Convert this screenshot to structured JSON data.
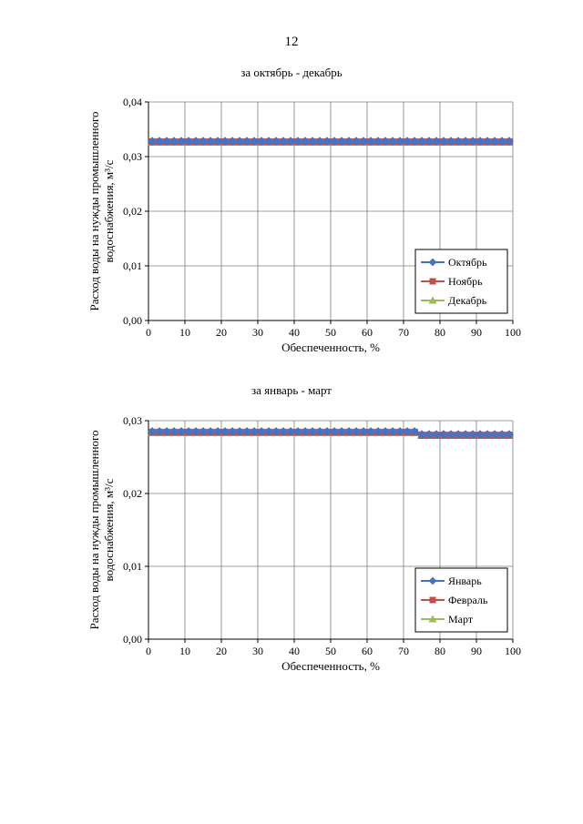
{
  "page_number": "12",
  "chart_data": [
    {
      "type": "line",
      "title": "за октябрь - декабрь",
      "xlabel": "Обеспеченность, %",
      "ylabel_lines": [
        "Расход воды на нужды промышленного",
        "водоснабжения, м³/с"
      ],
      "xlim": [
        0,
        100
      ],
      "ylim": [
        0,
        0.04
      ],
      "x_ticks": [
        0,
        10,
        20,
        30,
        40,
        50,
        60,
        70,
        80,
        90,
        100
      ],
      "y_ticks": [
        0,
        0.01,
        0.02,
        0.03,
        0.04
      ],
      "y_tick_labels": [
        "0,00",
        "0,01",
        "0,02",
        "0,03",
        "0,04"
      ],
      "grid": true,
      "legend_position": "bottom-right",
      "x": [
        1,
        3,
        5,
        7,
        9,
        11,
        13,
        15,
        17,
        19,
        21,
        23,
        25,
        27,
        29,
        31,
        33,
        35,
        37,
        39,
        41,
        43,
        45,
        47,
        49,
        51,
        53,
        55,
        57,
        59,
        61,
        63,
        65,
        67,
        69,
        71,
        73,
        75,
        77,
        79,
        81,
        83,
        85,
        87,
        89,
        91,
        93,
        95,
        97,
        99
      ],
      "series": [
        {
          "name": "Октябрь",
          "color": "#4472C4",
          "marker": "diamond",
          "values": [
            0.0328,
            0.0328,
            0.0328,
            0.0328,
            0.0328,
            0.0328,
            0.0328,
            0.0328,
            0.0328,
            0.0328,
            0.0328,
            0.0328,
            0.0328,
            0.0328,
            0.0328,
            0.0328,
            0.0328,
            0.0328,
            0.0328,
            0.0328,
            0.0328,
            0.0328,
            0.0328,
            0.0328,
            0.0328,
            0.0328,
            0.0328,
            0.0328,
            0.0328,
            0.0328,
            0.0328,
            0.0328,
            0.0328,
            0.0328,
            0.0328,
            0.0328,
            0.0328,
            0.0328,
            0.0328,
            0.0328,
            0.0328,
            0.0328,
            0.0328,
            0.0328,
            0.0328,
            0.0328,
            0.0328,
            0.0328,
            0.0328,
            0.0328
          ]
        },
        {
          "name": "Ноябрь",
          "color": "#C0504D",
          "marker": "square",
          "values": [
            0.0327,
            0.0327,
            0.0327,
            0.0327,
            0.0327,
            0.0327,
            0.0327,
            0.0327,
            0.0327,
            0.0327,
            0.0327,
            0.0327,
            0.0327,
            0.0327,
            0.0327,
            0.0327,
            0.0327,
            0.0327,
            0.0327,
            0.0327,
            0.0327,
            0.0327,
            0.0327,
            0.0327,
            0.0327,
            0.0327,
            0.0327,
            0.0327,
            0.0327,
            0.0327,
            0.0327,
            0.0327,
            0.0327,
            0.0327,
            0.0327,
            0.0327,
            0.0327,
            0.0327,
            0.0327,
            0.0327,
            0.0327,
            0.0327,
            0.0327,
            0.0327,
            0.0327,
            0.0327,
            0.0327,
            0.0327,
            0.0327,
            0.0327
          ]
        },
        {
          "name": "Декабрь",
          "color": "#9BBB59",
          "marker": "triangle",
          "values": [
            0.0327,
            0.0327,
            0.0327,
            0.0327,
            0.0327,
            0.0327,
            0.0327,
            0.0327,
            0.0327,
            0.0327,
            0.0327,
            0.0327,
            0.0327,
            0.0327,
            0.0327,
            0.0327,
            0.0327,
            0.0327,
            0.0327,
            0.0327,
            0.0327,
            0.0327,
            0.0327,
            0.0327,
            0.0327,
            0.0327,
            0.0327,
            0.0327,
            0.0327,
            0.0327,
            0.0327,
            0.0327,
            0.0327,
            0.0327,
            0.0327,
            0.0327,
            0.0327,
            0.0327,
            0.0327,
            0.0327,
            0.0327,
            0.0327,
            0.0327,
            0.0327,
            0.0327,
            0.0327,
            0.0327,
            0.0327,
            0.0327,
            0.0327
          ]
        }
      ]
    },
    {
      "type": "line",
      "title": "за январь - март",
      "xlabel": "Обеспеченность, %",
      "ylabel_lines": [
        "Расход воды на нужды промышленного",
        "водоснабжения, м³/с"
      ],
      "xlim": [
        0,
        100
      ],
      "ylim": [
        0,
        0.03
      ],
      "x_ticks": [
        0,
        10,
        20,
        30,
        40,
        50,
        60,
        70,
        80,
        90,
        100
      ],
      "y_ticks": [
        0,
        0.01,
        0.02,
        0.03
      ],
      "y_tick_labels": [
        "0,00",
        "0,01",
        "0,02",
        "0,03"
      ],
      "grid": true,
      "legend_position": "bottom-right",
      "x": [
        1,
        3,
        5,
        7,
        9,
        11,
        13,
        15,
        17,
        19,
        21,
        23,
        25,
        27,
        29,
        31,
        33,
        35,
        37,
        39,
        41,
        43,
        45,
        47,
        49,
        51,
        53,
        55,
        57,
        59,
        61,
        63,
        65,
        67,
        69,
        71,
        73,
        75,
        77,
        79,
        81,
        83,
        85,
        87,
        89,
        91,
        93,
        95,
        97,
        99
      ],
      "series": [
        {
          "name": "Январь",
          "color": "#4472C4",
          "marker": "diamond",
          "values": [
            0.0285,
            0.0285,
            0.0285,
            0.0285,
            0.0285,
            0.0285,
            0.0285,
            0.0285,
            0.0285,
            0.0285,
            0.0285,
            0.0285,
            0.0285,
            0.0285,
            0.0285,
            0.0285,
            0.0285,
            0.0285,
            0.0285,
            0.0285,
            0.0285,
            0.0285,
            0.0285,
            0.0285,
            0.0285,
            0.0285,
            0.0285,
            0.0285,
            0.0285,
            0.0285,
            0.0285,
            0.0285,
            0.0285,
            0.0285,
            0.0285,
            0.0285,
            0.0285,
            0.0281,
            0.0281,
            0.0281,
            0.0281,
            0.0281,
            0.0281,
            0.0281,
            0.0281,
            0.0281,
            0.0281,
            0.0281,
            0.0281,
            0.0281
          ]
        },
        {
          "name": "Февраль",
          "color": "#C0504D",
          "marker": "square",
          "values": [
            0.0284,
            0.0284,
            0.0284,
            0.0284,
            0.0284,
            0.0284,
            0.0284,
            0.0284,
            0.0284,
            0.0284,
            0.0284,
            0.0284,
            0.0284,
            0.0284,
            0.0284,
            0.0284,
            0.0284,
            0.0284,
            0.0284,
            0.0284,
            0.0284,
            0.0284,
            0.0284,
            0.0284,
            0.0284,
            0.0284,
            0.0284,
            0.0284,
            0.0284,
            0.0284,
            0.0284,
            0.0284,
            0.0284,
            0.0284,
            0.0284,
            0.0284,
            0.0284,
            0.028,
            0.028,
            0.028,
            0.028,
            0.028,
            0.028,
            0.028,
            0.028,
            0.028,
            0.028,
            0.028,
            0.028,
            0.028
          ]
        },
        {
          "name": "Март",
          "color": "#9BBB59",
          "marker": "triangle",
          "values": [
            0.0284,
            0.0284,
            0.0284,
            0.0284,
            0.0284,
            0.0284,
            0.0284,
            0.0284,
            0.0284,
            0.0284,
            0.0284,
            0.0284,
            0.0284,
            0.0284,
            0.0284,
            0.0284,
            0.0284,
            0.0284,
            0.0284,
            0.0284,
            0.0284,
            0.0284,
            0.0284,
            0.0284,
            0.0284,
            0.0284,
            0.0284,
            0.0284,
            0.0284,
            0.0284,
            0.0284,
            0.0284,
            0.0284,
            0.0284,
            0.0284,
            0.0284,
            0.0284,
            0.028,
            0.028,
            0.028,
            0.028,
            0.028,
            0.028,
            0.028,
            0.028,
            0.028,
            0.028,
            0.028,
            0.028,
            0.028
          ]
        }
      ]
    }
  ]
}
